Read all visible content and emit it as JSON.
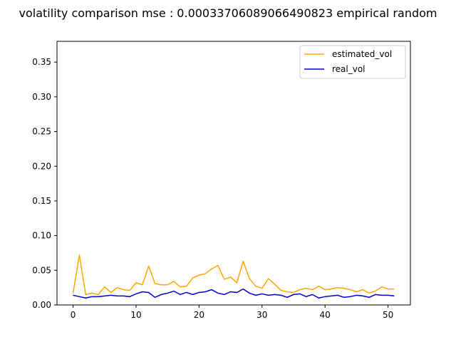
{
  "chart_data": {
    "type": "line",
    "title": "volatility comparison mse : 0.00033706089066490823 empirical random",
    "xlabel": "",
    "ylabel": "",
    "xlim": [
      -2.55,
      53.55
    ],
    "ylim": [
      0.0,
      0.38
    ],
    "xticks": [
      0,
      10,
      20,
      30,
      40,
      50
    ],
    "xtick_labels": [
      "0",
      "10",
      "20",
      "30",
      "40",
      "50"
    ],
    "yticks": [
      0.0,
      0.05,
      0.1,
      0.15,
      0.2,
      0.25,
      0.3,
      0.35
    ],
    "ytick_labels": [
      "0.00",
      "0.05",
      "0.10",
      "0.15",
      "0.20",
      "0.25",
      "0.30",
      "0.35"
    ],
    "grid": false,
    "legend_position": "top-right",
    "x": [
      0,
      1,
      2,
      3,
      4,
      5,
      6,
      7,
      8,
      9,
      10,
      11,
      12,
      13,
      14,
      15,
      16,
      17,
      18,
      19,
      20,
      21,
      22,
      23,
      24,
      25,
      26,
      27,
      28,
      29,
      30,
      31,
      32,
      33,
      34,
      35,
      36,
      37,
      38,
      39,
      40,
      41,
      42,
      43,
      44,
      45,
      46,
      47,
      48,
      49,
      50,
      51
    ],
    "series": [
      {
        "name": "estimated_vol",
        "color": "#ffa500",
        "values": [
          0.017,
          0.072,
          0.015,
          0.017,
          0.015,
          0.026,
          0.018,
          0.025,
          0.022,
          0.021,
          0.032,
          0.029,
          0.056,
          0.031,
          0.029,
          0.029,
          0.034,
          0.026,
          0.027,
          0.039,
          0.043,
          0.045,
          0.052,
          0.057,
          0.037,
          0.04,
          0.032,
          0.063,
          0.038,
          0.027,
          0.024,
          0.038,
          0.03,
          0.021,
          0.019,
          0.018,
          0.022,
          0.024,
          0.022,
          0.027,
          0.022,
          0.023,
          0.025,
          0.024,
          0.022,
          0.019,
          0.022,
          0.017,
          0.02,
          0.026,
          0.023,
          0.023
        ]
      },
      {
        "name": "real_vol",
        "color": "#0000cd",
        "values": [
          0.014,
          0.012,
          0.01,
          0.012,
          0.012,
          0.013,
          0.014,
          0.013,
          0.013,
          0.012,
          0.016,
          0.019,
          0.018,
          0.011,
          0.015,
          0.017,
          0.02,
          0.015,
          0.018,
          0.015,
          0.018,
          0.019,
          0.022,
          0.017,
          0.015,
          0.019,
          0.018,
          0.023,
          0.017,
          0.014,
          0.016,
          0.014,
          0.015,
          0.014,
          0.011,
          0.015,
          0.016,
          0.012,
          0.015,
          0.01,
          0.012,
          0.013,
          0.014,
          0.011,
          0.012,
          0.014,
          0.013,
          0.011,
          0.015,
          0.014,
          0.014,
          0.013
        ]
      }
    ]
  }
}
